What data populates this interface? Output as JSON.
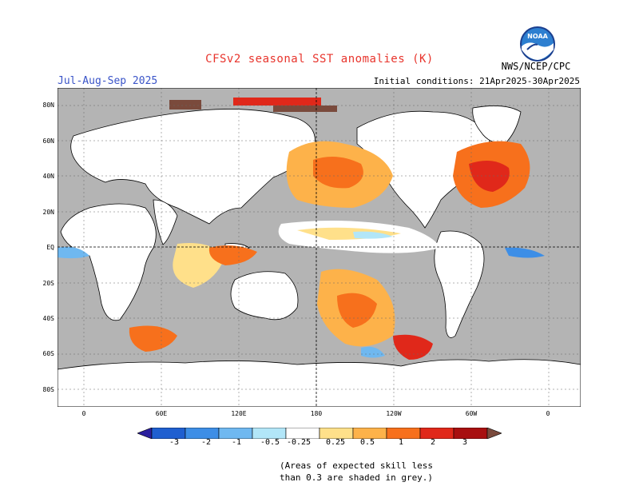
{
  "header": {
    "title": "CFSv2 seasonal SST anomalies (K)",
    "season": "Jul-Aug-Sep 2025",
    "initial_conditions": "Initial conditions: 21Apr2025-30Apr2025",
    "agency": "NWS/NCEP/CPC",
    "logo_text": "NOAA"
  },
  "map": {
    "lat_labels": [
      "80N",
      "60N",
      "40N",
      "20N",
      "EQ",
      "20S",
      "40S",
      "60S",
      "80S"
    ],
    "lon_labels": [
      "0",
      "60E",
      "120E",
      "180",
      "120W",
      "60W",
      "0"
    ]
  },
  "colorbar": {
    "labels": [
      "-3",
      "-2",
      "-1",
      "-0.5",
      "-0.25",
      "0.25",
      "0.5",
      "1",
      "2",
      "3"
    ],
    "colors": [
      "#2b1f9e",
      "#1f5fd0",
      "#3d8ee6",
      "#6fb8f0",
      "#b2e6f8",
      "#ffffff",
      "#ffe08a",
      "#fdb24a",
      "#f7701c",
      "#e0281a",
      "#a80f10",
      "#7a4a3c"
    ]
  },
  "note": {
    "line1": "(Areas of expected skill less",
    "line2": "than 0.3 are shaded in grey.)"
  },
  "colors": {
    "land": "#ffffff",
    "ocean_grey": "#b4b4b4",
    "title_red": "#e8342c",
    "season_blue": "#3a54c8"
  }
}
